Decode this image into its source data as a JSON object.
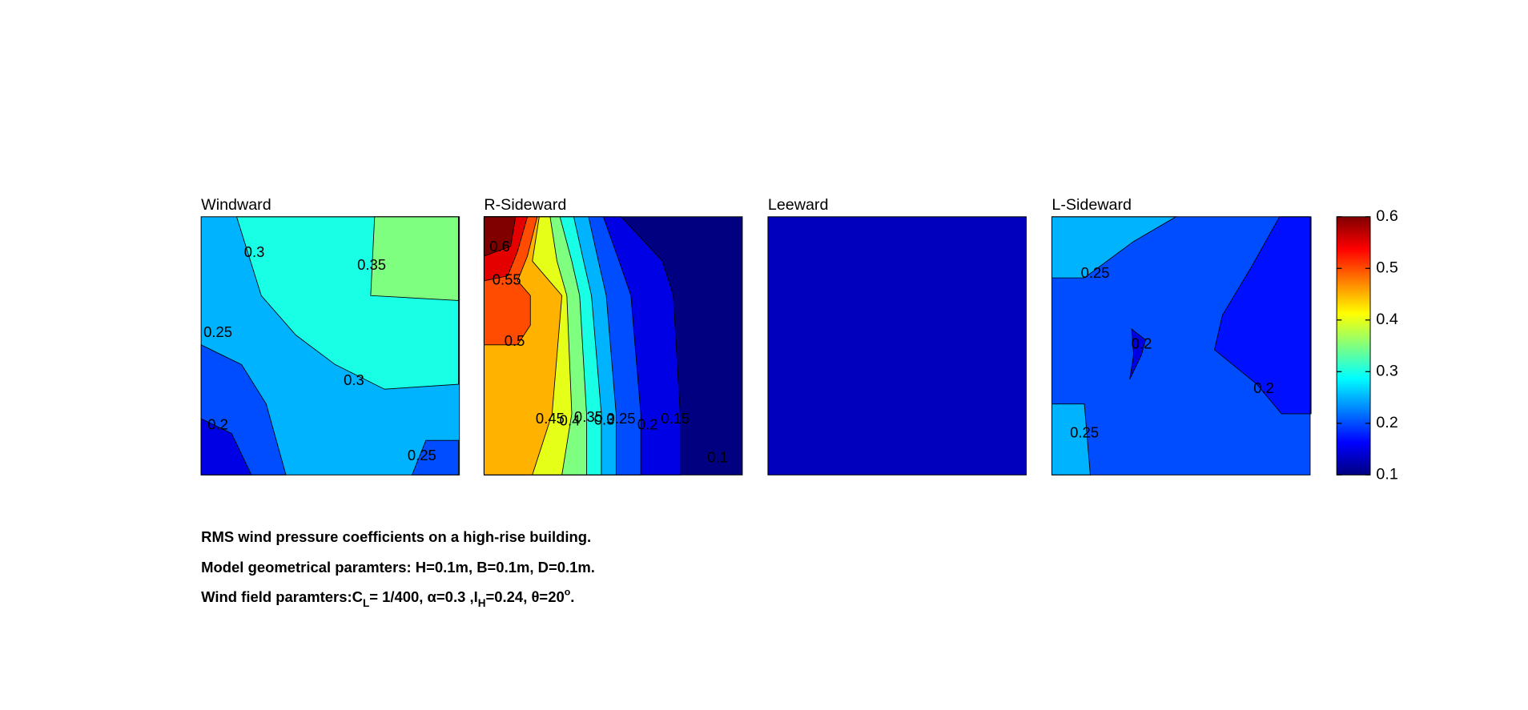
{
  "chart_data": {
    "type": "contour",
    "panels": [
      {
        "title": "Windward",
        "fill_levels": [
          0.25,
          0.3,
          0.35,
          0.2,
          0.2,
          0.15
        ],
        "contour_labels": [
          0.3,
          0.35,
          0.25,
          0.3,
          0.2,
          0.25
        ]
      },
      {
        "title": "R-Sideward",
        "fill_levels": [
          0.1,
          0.15,
          0.2,
          0.25,
          0.3,
          0.35,
          0.4,
          0.45,
          0.5,
          0.55,
          0.6
        ],
        "contour_labels": [
          0.6,
          0.55,
          0.5,
          0.45,
          0.4,
          0.35,
          0.3,
          0.25,
          0.2,
          0.15,
          0.1
        ]
      },
      {
        "title": "Leeward",
        "fill_levels": [
          0.13
        ],
        "contour_labels": []
      },
      {
        "title": "L-Sideward",
        "fill_levels": [
          0.2,
          0.25,
          0.25,
          0.17,
          0.15
        ],
        "contour_labels": [
          0.25,
          0.2,
          0.2,
          0.25
        ]
      }
    ],
    "colorbar": {
      "ylim": [
        0.1,
        0.6
      ],
      "yticks": [
        0.1,
        0.2,
        0.3,
        0.4,
        0.5,
        0.6
      ]
    }
  },
  "caption": {
    "line1": "RMS wind pressure coefficients on a high-rise building.",
    "line2": "Model geometrical paramters: H=0.1m, B=0.1m, D=0.1m.",
    "line3": [
      "Wind field paramters:C",
      "L",
      "= 1/400, α=0.3 ,I",
      "H",
      "=0.24, θ=20",
      "o",
      "."
    ]
  }
}
